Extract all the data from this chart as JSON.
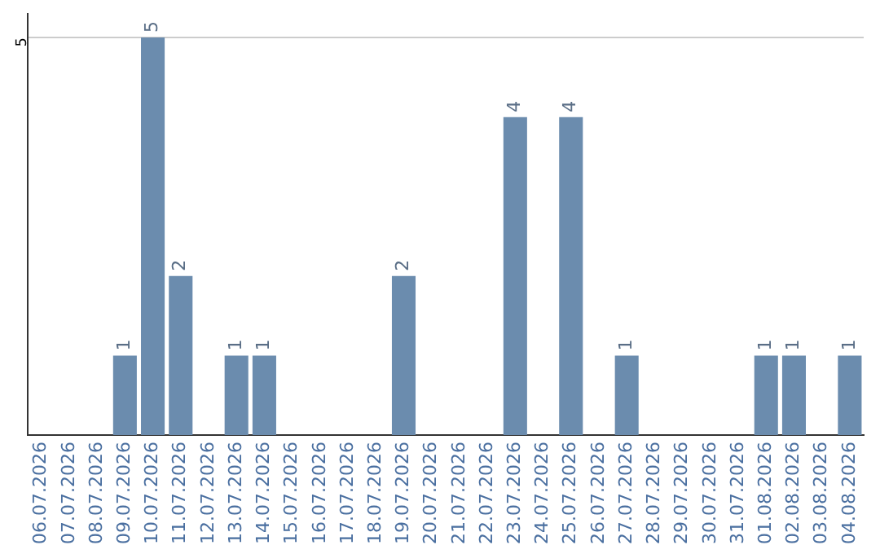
{
  "chart_data": {
    "type": "bar",
    "categories": [
      "06.07.2026",
      "07.07.2026",
      "08.07.2026",
      "09.07.2026",
      "10.07.2026",
      "11.07.2026",
      "12.07.2026",
      "13.07.2026",
      "14.07.2026",
      "15.07.2026",
      "16.07.2026",
      "17.07.2026",
      "18.07.2026",
      "19.07.2026",
      "20.07.2026",
      "21.07.2026",
      "22.07.2026",
      "23.07.2026",
      "24.07.2026",
      "25.07.2026",
      "26.07.2026",
      "27.07.2026",
      "28.07.2026",
      "29.07.2026",
      "30.07.2026",
      "31.07.2026",
      "01.08.2026",
      "02.08.2026",
      "03.08.2026",
      "04.08.2026"
    ],
    "values": [
      null,
      null,
      null,
      1,
      5,
      2,
      null,
      1,
      1,
      null,
      null,
      null,
      null,
      2,
      null,
      null,
      null,
      4,
      null,
      4,
      null,
      1,
      null,
      null,
      null,
      null,
      1,
      1,
      null,
      1
    ],
    "color": "#6b8cae",
    "ylim": [
      0,
      5.3
    ],
    "yticks": [
      5
    ],
    "grid": "y",
    "data_labels": true,
    "legend": false
  }
}
